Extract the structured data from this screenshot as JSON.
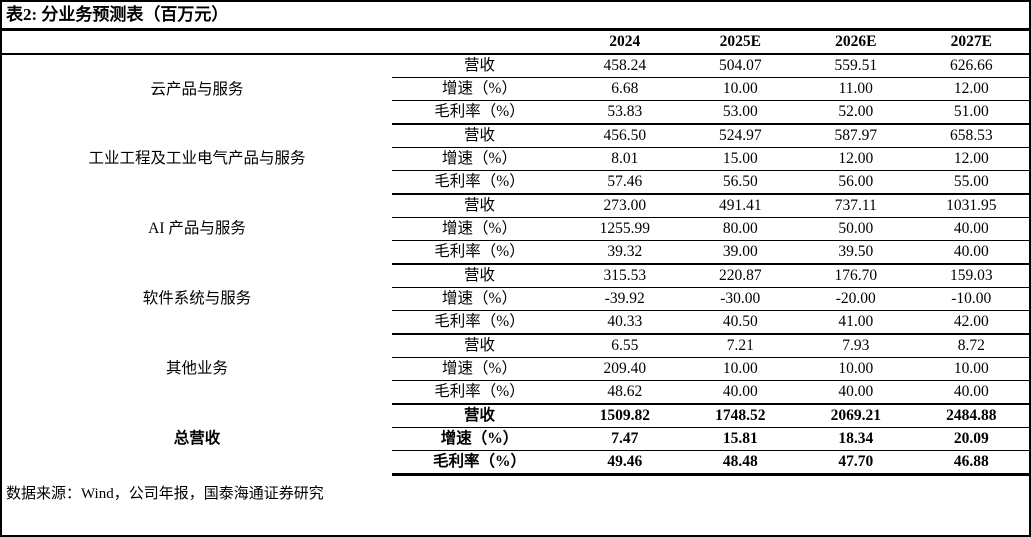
{
  "title": "表2:  分业务预测表（百万元）",
  "footer": "数据来源：Wind，公司年报，国泰海通证券研究",
  "chart_data": {
    "type": "table",
    "title": "分业务预测表（百万元）",
    "year_headers": [
      "2024",
      "2025E",
      "2026E",
      "2027E"
    ],
    "metric_labels": [
      "营收",
      "增速（%）",
      "毛利率（%）"
    ],
    "groups": [
      {
        "name": "云产品与服务",
        "bold": false,
        "rows": [
          [
            "458.24",
            "504.07",
            "559.51",
            "626.66"
          ],
          [
            "6.68",
            "10.00",
            "11.00",
            "12.00"
          ],
          [
            "53.83",
            "53.00",
            "52.00",
            "51.00"
          ]
        ]
      },
      {
        "name": "工业工程及工业电气产品与服务",
        "bold": false,
        "rows": [
          [
            "456.50",
            "524.97",
            "587.97",
            "658.53"
          ],
          [
            "8.01",
            "15.00",
            "12.00",
            "12.00"
          ],
          [
            "57.46",
            "56.50",
            "56.00",
            "55.00"
          ]
        ]
      },
      {
        "name": "AI 产品与服务",
        "bold": false,
        "rows": [
          [
            "273.00",
            "491.41",
            "737.11",
            "1031.95"
          ],
          [
            "1255.99",
            "80.00",
            "50.00",
            "40.00"
          ],
          [
            "39.32",
            "39.00",
            "39.50",
            "40.00"
          ]
        ]
      },
      {
        "name": "软件系统与服务",
        "bold": false,
        "rows": [
          [
            "315.53",
            "220.87",
            "176.70",
            "159.03"
          ],
          [
            "-39.92",
            "-30.00",
            "-20.00",
            "-10.00"
          ],
          [
            "40.33",
            "40.50",
            "41.00",
            "42.00"
          ]
        ]
      },
      {
        "name": "其他业务",
        "bold": false,
        "rows": [
          [
            "6.55",
            "7.21",
            "7.93",
            "8.72"
          ],
          [
            "209.40",
            "10.00",
            "10.00",
            "10.00"
          ],
          [
            "48.62",
            "40.00",
            "40.00",
            "40.00"
          ]
        ]
      },
      {
        "name": "总营收",
        "bold": true,
        "rows": [
          [
            "1509.82",
            "1748.52",
            "2069.21",
            "2484.88"
          ],
          [
            "7.47",
            "15.81",
            "18.34",
            "20.09"
          ],
          [
            "49.46",
            "48.48",
            "47.70",
            "46.88"
          ]
        ]
      }
    ]
  }
}
